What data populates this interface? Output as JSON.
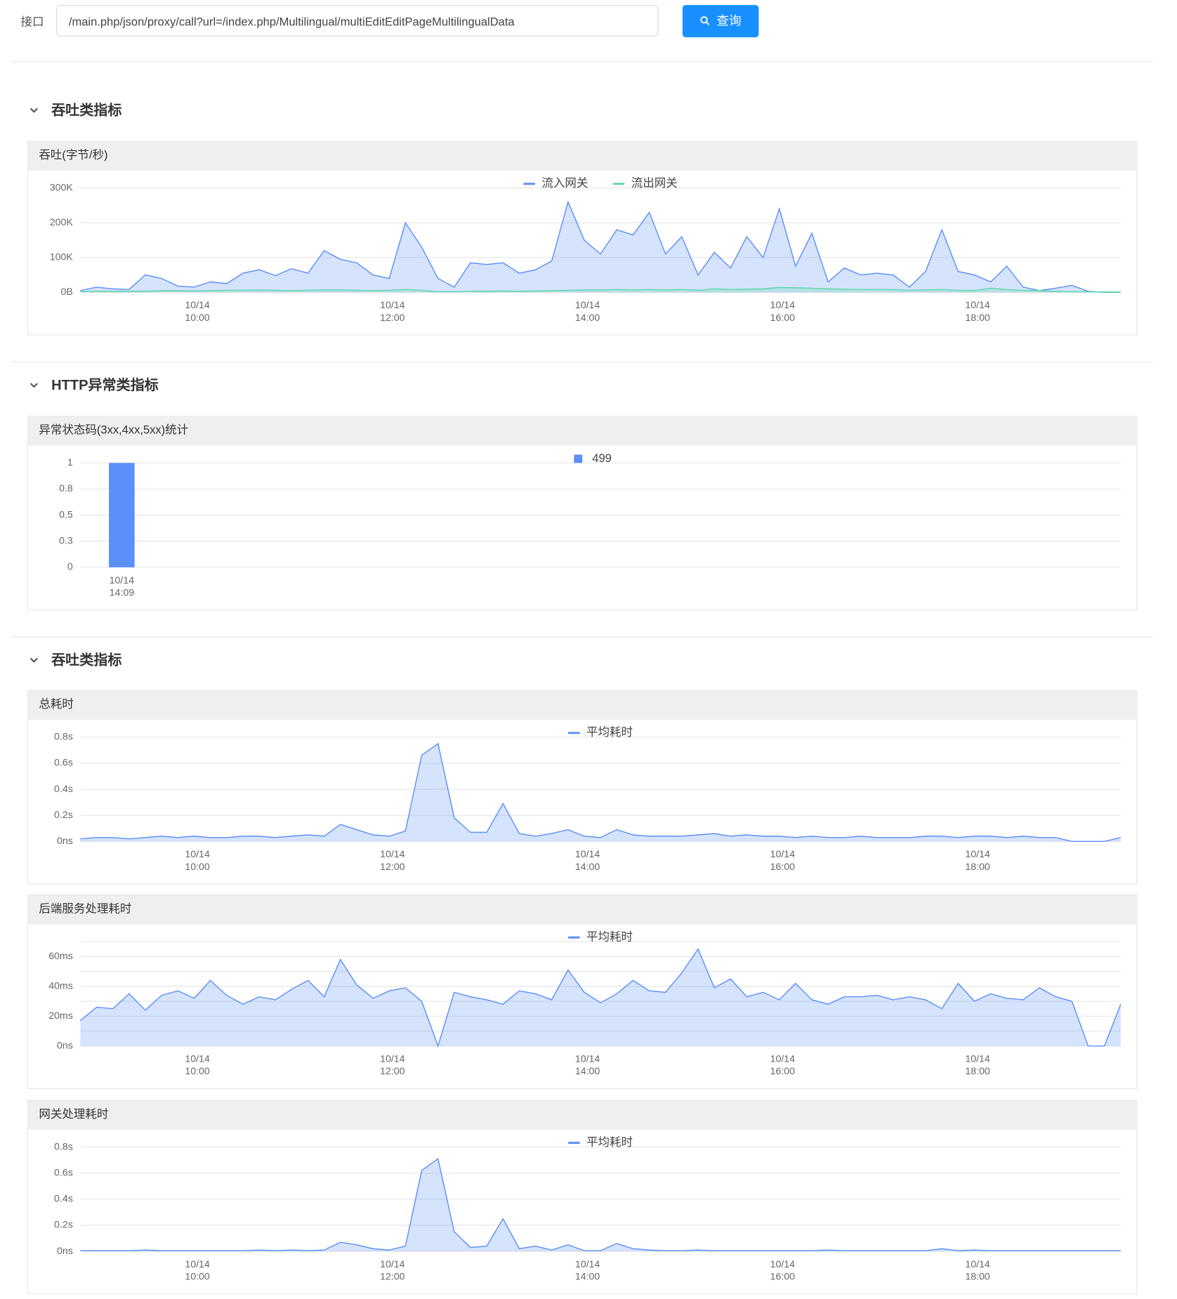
{
  "toolbar": {
    "label": "接口",
    "input": "/main.php/json/proxy/call?url=/index.php/Multilingual/multiEditEditPageMultilingualData",
    "button": "查询"
  },
  "sections": [
    {
      "title": "吞吐类指标"
    },
    {
      "title": "HTTP异常类指标"
    },
    {
      "title": "吞吐类指标"
    }
  ],
  "chart_data": [
    {
      "type": "area",
      "title": "吞吐(字节/秒)",
      "legend": "top",
      "x": [
        "10/14 08:48",
        "10/14 08:58",
        "10/14 09:08",
        "10/14 09:18",
        "10/14 09:28",
        "10/14 09:38",
        "10/14 09:48",
        "10/14 09:58",
        "10/14 10:08",
        "10/14 10:18",
        "10/14 10:28",
        "10/14 10:38",
        "10/14 10:48",
        "10/14 10:58",
        "10/14 11:08",
        "10/14 11:18",
        "10/14 11:28",
        "10/14 11:38",
        "10/14 11:48",
        "10/14 11:58",
        "10/14 12:08",
        "10/14 12:18",
        "10/14 12:28",
        "10/14 12:38",
        "10/14 12:48",
        "10/14 12:58",
        "10/14 13:08",
        "10/14 13:18",
        "10/14 13:28",
        "10/14 13:38",
        "10/14 13:48",
        "10/14 13:58",
        "10/14 14:08",
        "10/14 14:18",
        "10/14 14:28",
        "10/14 14:38",
        "10/14 14:48",
        "10/14 14:58",
        "10/14 15:08",
        "10/14 15:18",
        "10/14 15:28",
        "10/14 15:38",
        "10/14 15:48",
        "10/14 15:58",
        "10/14 16:08",
        "10/14 16:18",
        "10/14 16:28",
        "10/14 16:38",
        "10/14 16:48",
        "10/14 16:58",
        "10/14 17:08",
        "10/14 17:18",
        "10/14 17:28",
        "10/14 17:38",
        "10/14 17:48",
        "10/14 17:58",
        "10/14 18:08",
        "10/14 18:18",
        "10/14 18:28",
        "10/14 18:38",
        "10/14 18:48",
        "10/14 18:58",
        "10/14 19:08",
        "10/14 19:18",
        "10/14 19:28"
      ],
      "xlim": [
        "10/14 08:48",
        "10/14 19:28"
      ],
      "xticks": [
        "10/14 10:00",
        "10/14 12:00",
        "10/14 14:00",
        "10/14 16:00",
        "10/14 18:00"
      ],
      "ylim": [
        0,
        300000
      ],
      "yticks": [
        {
          "value": 0,
          "label": "0B"
        },
        {
          "value": 100000,
          "label": "100K"
        },
        {
          "value": 200000,
          "label": "200K"
        },
        {
          "value": 300000,
          "label": "300K"
        }
      ],
      "series": [
        {
          "name": "流入网关",
          "color": "#5b8ff9",
          "values": [
            5000,
            15000,
            10000,
            8000,
            50000,
            40000,
            18000,
            15000,
            30000,
            25000,
            55000,
            65000,
            48000,
            68000,
            55000,
            120000,
            95000,
            85000,
            50000,
            40000,
            200000,
            130000,
            40000,
            15000,
            85000,
            80000,
            85000,
            55000,
            65000,
            90000,
            260000,
            150000,
            110000,
            180000,
            165000,
            230000,
            110000,
            160000,
            50000,
            115000,
            70000,
            160000,
            100000,
            240000,
            75000,
            170000,
            30000,
            70000,
            50000,
            55000,
            50000,
            15000,
            60000,
            180000,
            60000,
            50000,
            30000,
            75000,
            15000,
            5000,
            12000,
            20000,
            3000,
            0,
            0
          ]
        },
        {
          "name": "流出网关",
          "color": "#5ad8a6",
          "values": [
            2000,
            3000,
            3000,
            3000,
            3000,
            5000,
            5000,
            4000,
            5000,
            6000,
            6000,
            7000,
            6000,
            5000,
            6000,
            7000,
            7000,
            6000,
            5000,
            6000,
            8000,
            6000,
            2000,
            2000,
            3000,
            3000,
            4000,
            3000,
            4000,
            5000,
            6000,
            7000,
            7000,
            8000,
            7000,
            8000,
            7000,
            8000,
            6000,
            10000,
            8000,
            9000,
            10000,
            14000,
            13000,
            12000,
            10000,
            9000,
            8000,
            8000,
            8000,
            6000,
            7000,
            8000,
            6000,
            5000,
            12000,
            8000,
            6000,
            5000,
            3000,
            2000,
            2000,
            1000,
            1000
          ]
        }
      ]
    },
    {
      "type": "bar",
      "title": "异常状态码(3xx,4xx,5xx)统计",
      "legend": "top",
      "categories": [
        "10/14 14:09"
      ],
      "ylim": [
        0,
        1
      ],
      "yticks": [
        0,
        {
          "value": 0.25,
          "label": "0.3"
        },
        0.5,
        {
          "value": 0.75,
          "label": "0.8"
        },
        1
      ],
      "series": [
        {
          "name": "499",
          "color": "#5b8ff9",
          "values": [
            1
          ]
        }
      ]
    },
    {
      "type": "area",
      "title": "总耗时",
      "legend": "top",
      "x": [
        "10/14 08:48",
        "10/14 08:58",
        "10/14 09:08",
        "10/14 09:18",
        "10/14 09:28",
        "10/14 09:38",
        "10/14 09:48",
        "10/14 09:58",
        "10/14 10:08",
        "10/14 10:18",
        "10/14 10:28",
        "10/14 10:38",
        "10/14 10:48",
        "10/14 10:58",
        "10/14 11:08",
        "10/14 11:18",
        "10/14 11:28",
        "10/14 11:38",
        "10/14 11:48",
        "10/14 11:58",
        "10/14 12:08",
        "10/14 12:18",
        "10/14 12:28",
        "10/14 12:38",
        "10/14 12:48",
        "10/14 12:58",
        "10/14 13:08",
        "10/14 13:18",
        "10/14 13:28",
        "10/14 13:38",
        "10/14 13:48",
        "10/14 13:58",
        "10/14 14:08",
        "10/14 14:18",
        "10/14 14:28",
        "10/14 14:38",
        "10/14 14:48",
        "10/14 14:58",
        "10/14 15:08",
        "10/14 15:18",
        "10/14 15:28",
        "10/14 15:38",
        "10/14 15:48",
        "10/14 15:58",
        "10/14 16:08",
        "10/14 16:18",
        "10/14 16:28",
        "10/14 16:38",
        "10/14 16:48",
        "10/14 16:58",
        "10/14 17:08",
        "10/14 17:18",
        "10/14 17:28",
        "10/14 17:38",
        "10/14 17:48",
        "10/14 17:58",
        "10/14 18:08",
        "10/14 18:18",
        "10/14 18:28",
        "10/14 18:38",
        "10/14 18:48",
        "10/14 18:58",
        "10/14 19:08",
        "10/14 19:18",
        "10/14 19:28"
      ],
      "xlim": [
        "10/14 08:48",
        "10/14 19:28"
      ],
      "xticks": [
        "10/14 10:00",
        "10/14 12:00",
        "10/14 14:00",
        "10/14 16:00",
        "10/14 18:00"
      ],
      "ylim": [
        0,
        0.8
      ],
      "yticks": [
        {
          "value": 0,
          "label": "0ns"
        },
        {
          "value": 0.2,
          "label": "0.2s"
        },
        {
          "value": 0.4,
          "label": "0.4s"
        },
        {
          "value": 0.6,
          "label": "0.6s"
        },
        {
          "value": 0.8,
          "label": "0.8s"
        }
      ],
      "series": [
        {
          "name": "平均耗时",
          "color": "#5b8ff9",
          "values": [
            0.02,
            0.03,
            0.03,
            0.02,
            0.03,
            0.04,
            0.03,
            0.04,
            0.03,
            0.03,
            0.04,
            0.04,
            0.03,
            0.04,
            0.05,
            0.04,
            0.13,
            0.09,
            0.05,
            0.04,
            0.08,
            0.66,
            0.75,
            0.18,
            0.07,
            0.07,
            0.29,
            0.06,
            0.04,
            0.06,
            0.09,
            0.04,
            0.03,
            0.09,
            0.05,
            0.04,
            0.04,
            0.04,
            0.05,
            0.06,
            0.04,
            0.05,
            0.04,
            0.04,
            0.03,
            0.04,
            0.03,
            0.03,
            0.04,
            0.03,
            0.03,
            0.03,
            0.04,
            0.04,
            0.03,
            0.04,
            0.04,
            0.03,
            0.04,
            0.03,
            0.03,
            0,
            0,
            0,
            0.03
          ]
        }
      ]
    },
    {
      "type": "area",
      "title": "后端服务处理耗时",
      "legend": "top",
      "x": [
        "10/14 08:48",
        "10/14 08:58",
        "10/14 09:08",
        "10/14 09:18",
        "10/14 09:28",
        "10/14 09:38",
        "10/14 09:48",
        "10/14 09:58",
        "10/14 10:08",
        "10/14 10:18",
        "10/14 10:28",
        "10/14 10:38",
        "10/14 10:48",
        "10/14 10:58",
        "10/14 11:08",
        "10/14 11:18",
        "10/14 11:28",
        "10/14 11:38",
        "10/14 11:48",
        "10/14 11:58",
        "10/14 12:08",
        "10/14 12:18",
        "10/14 12:28",
        "10/14 12:38",
        "10/14 12:48",
        "10/14 12:58",
        "10/14 13:08",
        "10/14 13:18",
        "10/14 13:28",
        "10/14 13:38",
        "10/14 13:48",
        "10/14 13:58",
        "10/14 14:08",
        "10/14 14:18",
        "10/14 14:28",
        "10/14 14:38",
        "10/14 14:48",
        "10/14 14:58",
        "10/14 15:08",
        "10/14 15:18",
        "10/14 15:28",
        "10/14 15:38",
        "10/14 15:48",
        "10/14 15:58",
        "10/14 16:08",
        "10/14 16:18",
        "10/14 16:28",
        "10/14 16:38",
        "10/14 16:48",
        "10/14 16:58",
        "10/14 17:08",
        "10/14 17:18",
        "10/14 17:28",
        "10/14 17:38",
        "10/14 17:48",
        "10/14 17:58",
        "10/14 18:08",
        "10/14 18:18",
        "10/14 18:28",
        "10/14 18:38",
        "10/14 18:48",
        "10/14 18:58",
        "10/14 19:08",
        "10/14 19:18",
        "10/14 19:28"
      ],
      "xlim": [
        "10/14 08:48",
        "10/14 19:28"
      ],
      "xticks": [
        "10/14 10:00",
        "10/14 12:00",
        "10/14 14:00",
        "10/14 16:00",
        "10/14 18:00"
      ],
      "ylim": [
        0,
        70
      ],
      "yticks": [
        {
          "value": 0,
          "label": "0ns"
        },
        {
          "value": 20,
          "label": "20ms"
        },
        {
          "value": 40,
          "label": "40ms"
        },
        {
          "value": 60,
          "label": "60ms"
        }
      ],
      "minor_yticks": [
        10,
        30,
        50,
        70
      ],
      "series": [
        {
          "name": "平均耗时",
          "color": "#5b8ff9",
          "values": [
            17,
            26,
            25,
            35,
            24,
            34,
            37,
            32,
            44,
            34,
            28,
            33,
            31,
            38,
            44,
            33,
            58,
            41,
            32,
            37,
            39,
            30,
            0,
            36,
            33,
            31,
            28,
            37,
            35,
            31,
            51,
            36,
            29,
            35,
            44,
            37,
            36,
            49,
            65,
            39,
            45,
            33,
            36,
            31,
            42,
            31,
            28,
            33,
            33,
            34,
            31,
            33,
            31,
            25,
            42,
            30,
            35,
            32,
            31,
            39,
            33,
            30,
            0,
            0,
            28
          ]
        }
      ]
    },
    {
      "type": "area",
      "title": "网关处理耗时",
      "legend": "top",
      "x": [
        "10/14 08:48",
        "10/14 08:58",
        "10/14 09:08",
        "10/14 09:18",
        "10/14 09:28",
        "10/14 09:38",
        "10/14 09:48",
        "10/14 09:58",
        "10/14 10:08",
        "10/14 10:18",
        "10/14 10:28",
        "10/14 10:38",
        "10/14 10:48",
        "10/14 10:58",
        "10/14 11:08",
        "10/14 11:18",
        "10/14 11:28",
        "10/14 11:38",
        "10/14 11:48",
        "10/14 11:58",
        "10/14 12:08",
        "10/14 12:18",
        "10/14 12:28",
        "10/14 12:38",
        "10/14 12:48",
        "10/14 12:58",
        "10/14 13:08",
        "10/14 13:18",
        "10/14 13:28",
        "10/14 13:38",
        "10/14 13:48",
        "10/14 13:58",
        "10/14 14:08",
        "10/14 14:18",
        "10/14 14:28",
        "10/14 14:38",
        "10/14 14:48",
        "10/14 14:58",
        "10/14 15:08",
        "10/14 15:18",
        "10/14 15:28",
        "10/14 15:38",
        "10/14 15:48",
        "10/14 15:58",
        "10/14 16:08",
        "10/14 16:18",
        "10/14 16:28",
        "10/14 16:38",
        "10/14 16:48",
        "10/14 16:58",
        "10/14 17:08",
        "10/14 17:18",
        "10/14 17:28",
        "10/14 17:38",
        "10/14 17:48",
        "10/14 17:58",
        "10/14 18:08",
        "10/14 18:18",
        "10/14 18:28",
        "10/14 18:38",
        "10/14 18:48",
        "10/14 18:58",
        "10/14 19:08",
        "10/14 19:18",
        "10/14 19:28"
      ],
      "xlim": [
        "10/14 08:48",
        "10/14 19:28"
      ],
      "xticks": [
        "10/14 10:00",
        "10/14 12:00",
        "10/14 14:00",
        "10/14 16:00",
        "10/14 18:00"
      ],
      "ylim": [
        0,
        0.8
      ],
      "yticks": [
        {
          "value": 0,
          "label": "0ns"
        },
        {
          "value": 0.2,
          "label": "0.2s"
        },
        {
          "value": 0.4,
          "label": "0.4s"
        },
        {
          "value": 0.6,
          "label": "0.6s"
        },
        {
          "value": 0.8,
          "label": "0.8s"
        }
      ],
      "series": [
        {
          "name": "平均耗时",
          "color": "#5b8ff9",
          "values": [
            0.005,
            0.005,
            0.005,
            0.005,
            0.01,
            0.005,
            0.005,
            0.005,
            0.005,
            0.005,
            0.005,
            0.01,
            0.005,
            0.01,
            0.005,
            0.01,
            0.07,
            0.05,
            0.02,
            0.01,
            0.04,
            0.62,
            0.71,
            0.15,
            0.03,
            0.04,
            0.25,
            0.02,
            0.04,
            0.01,
            0.05,
            0.005,
            0.005,
            0.06,
            0.02,
            0.01,
            0.005,
            0.005,
            0.01,
            0.005,
            0.005,
            0.005,
            0.005,
            0.005,
            0.005,
            0.005,
            0.01,
            0.005,
            0.005,
            0.005,
            0.005,
            0.005,
            0.005,
            0.02,
            0.005,
            0.01,
            0.005,
            0.005,
            0.005,
            0.005,
            0.005,
            0.005,
            0.005,
            0.005,
            0.005
          ]
        }
      ]
    }
  ]
}
